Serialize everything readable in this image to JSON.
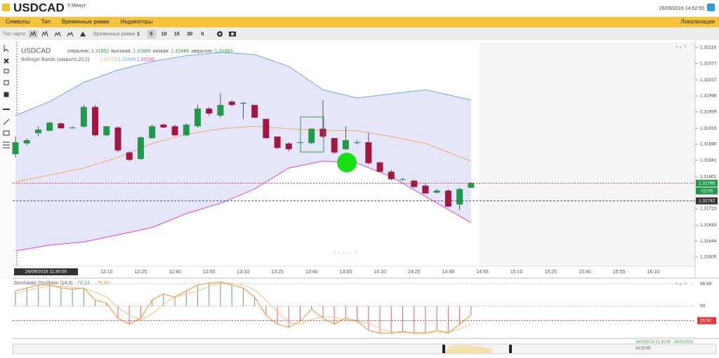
{
  "header": {
    "symbol": "USDCAD",
    "timeframe": "5 Минут",
    "datetime": "26/09/2016 14:52:55"
  },
  "menu": {
    "items": [
      "Символы",
      "Тип",
      "Временные рамки",
      "Индикаторы"
    ],
    "right": "Локализация"
  },
  "toolbar": {
    "chart_type_label": "Тип чарта:",
    "timeframes_label": "Временные рамки",
    "timeframes": [
      "1",
      "5",
      "10",
      "15",
      "30",
      "h"
    ],
    "active": "5"
  },
  "price_chart": {
    "type": "candlestick",
    "symbol": "USDCAD",
    "legend": [
      {
        "label": "открытие:",
        "value": "1.31852"
      },
      {
        "label": "высокая:",
        "value": "1.31886"
      },
      {
        "label": "низкая:",
        "value": "1.31849"
      },
      {
        "label": "закрытие:",
        "value": "1.31883"
      }
    ],
    "bollinger": {
      "name": "Bollinger Bands (закрыто,20,2)",
      "values": [
        "1.31770",
        "1.31945",
        "1.31595"
      ]
    },
    "start_label": "26/09/2016 11:30:00",
    "xticks": [
      "12:10",
      "12:25",
      "12:40",
      "12:55",
      "13:10",
      "13:25",
      "13:40",
      "13:55",
      "14:10",
      "14:25",
      "14:40",
      "14:55",
      "15:10",
      "15:25",
      "15:40",
      "15:55",
      "16:10"
    ],
    "ylim": [
      1.31574,
      1.32126
    ],
    "yticks": [
      1.32116,
      1.32077,
      1.32037,
      1.31998,
      1.31959,
      1.31919,
      {
        "value": 1.3188,
        "label": "1.31880"
      },
      1.31841,
      1.31801,
      1.31723,
      1.31683,
      1.31644,
      1.31605
    ],
    "up_color": "#1f9a48",
    "down_color": "#a3163f",
    "candles": [
      {
        "open": 1.31856,
        "high": 1.31899,
        "low": 1.31848,
        "close": 1.31885
      },
      {
        "open": 1.31882,
        "high": 1.31894,
        "low": 1.31877,
        "close": 1.3189
      },
      {
        "open": 1.31907,
        "high": 1.31924,
        "low": 1.31899,
        "close": 1.31916
      },
      {
        "open": 1.31913,
        "high": 1.31935,
        "low": 1.31911,
        "close": 1.31933
      },
      {
        "open": 1.31931,
        "high": 1.31933,
        "low": 1.31918,
        "close": 1.31919
      },
      {
        "open": 1.31921,
        "high": 1.31924,
        "low": 1.31919,
        "close": 1.31921
      },
      {
        "open": 1.31923,
        "high": 1.31976,
        "low": 1.31921,
        "close": 1.31971
      },
      {
        "open": 1.31971,
        "high": 1.31976,
        "low": 1.31899,
        "close": 1.31902
      },
      {
        "open": 1.31902,
        "high": 1.31924,
        "low": 1.31899,
        "close": 1.31924
      },
      {
        "open": 1.31921,
        "high": 1.31924,
        "low": 1.3186,
        "close": 1.31865
      },
      {
        "open": 1.3186,
        "high": 1.31863,
        "low": 1.31839,
        "close": 1.31842
      },
      {
        "open": 1.31844,
        "high": 1.31899,
        "low": 1.31842,
        "close": 1.31897
      },
      {
        "open": 1.31895,
        "high": 1.31928,
        "low": 1.31894,
        "close": 1.31924
      },
      {
        "open": 1.31928,
        "high": 1.31931,
        "low": 1.31919,
        "close": 1.31921
      },
      {
        "open": 1.31924,
        "high": 1.31928,
        "low": 1.31899,
        "close": 1.31902
      },
      {
        "open": 1.31902,
        "high": 1.31931,
        "low": 1.31899,
        "close": 1.31928
      },
      {
        "open": 1.31924,
        "high": 1.31976,
        "low": 1.31921,
        "close": 1.31967
      },
      {
        "open": 1.31967,
        "high": 1.31971,
        "low": 1.3195,
        "close": 1.31955
      },
      {
        "open": 1.3195,
        "high": 1.32005,
        "low": 1.31945,
        "close": 1.31976
      },
      {
        "open": 1.31984,
        "high": 1.31988,
        "low": 1.31972,
        "close": 1.31976
      },
      {
        "open": 1.31981,
        "high": 1.31984,
        "low": 1.31942,
        "close": 1.31981
      },
      {
        "open": 1.31976,
        "high": 1.31976,
        "low": 1.31945,
        "close": 1.31945
      },
      {
        "open": 1.31942,
        "high": 1.31942,
        "low": 1.31894,
        "close": 1.31895
      },
      {
        "open": 1.31899,
        "high": 1.31899,
        "low": 1.31868,
        "close": 1.31871
      },
      {
        "open": 1.31882,
        "high": 1.31885,
        "low": 1.31863,
        "close": 1.31868
      },
      {
        "open": 1.31885,
        "high": 1.31888,
        "low": 1.31883,
        "close": 1.31885
      },
      {
        "open": 1.31883,
        "high": 1.31919,
        "low": 1.3188,
        "close": 1.31918
      },
      {
        "open": 1.31918,
        "high": 1.31988,
        "low": 1.31895,
        "close": 1.31899
      },
      {
        "open": 1.31895,
        "high": 1.31895,
        "low": 1.31856,
        "close": 1.3186
      },
      {
        "open": 1.31868,
        "high": 1.31924,
        "low": 1.31865,
        "close": 1.3189
      },
      {
        "open": 1.31885,
        "high": 1.3189,
        "low": 1.3188,
        "close": 1.31885
      },
      {
        "open": 1.31885,
        "high": 1.31907,
        "low": 1.3183,
        "close": 1.31834
      },
      {
        "open": 1.31836,
        "high": 1.31836,
        "low": 1.31813,
        "close": 1.31813
      },
      {
        "open": 1.31813,
        "high": 1.31818,
        "low": 1.31791,
        "close": 1.31795
      },
      {
        "open": 1.31795,
        "high": 1.31798,
        "low": 1.31791,
        "close": 1.31795
      },
      {
        "open": 1.31791,
        "high": 1.31795,
        "low": 1.31774,
        "close": 1.31776
      },
      {
        "open": 1.31779,
        "high": 1.31786,
        "low": 1.3176,
        "close": 1.3176
      },
      {
        "open": 1.31762,
        "high": 1.31771,
        "low": 1.3176,
        "close": 1.31767
      },
      {
        "open": 1.31767,
        "high": 1.31771,
        "low": 1.31728,
        "close": 1.31728
      },
      {
        "open": 1.31733,
        "high": 1.31774,
        "low": 1.31719,
        "close": 1.31771
      },
      {
        "open": 1.31774,
        "high": 1.31788,
        "low": 1.31774,
        "close": 1.31786
      }
    ],
    "bands": {
      "x": [
        0,
        3,
        6,
        9,
        12,
        15,
        18,
        21,
        24,
        27,
        30,
        33,
        36,
        40
      ],
      "upper": {
        "color": "#6fa8dc",
        "values": [
          1.3195,
          1.31984,
          1.32031,
          1.32061,
          1.32082,
          1.32096,
          1.32104,
          1.32099,
          1.3207,
          1.32013,
          1.31993,
          1.32003,
          1.32013,
          1.31988
        ]
      },
      "middle": {
        "color": "#f4a460",
        "values": [
          1.31788,
          1.31805,
          1.31822,
          1.31848,
          1.31882,
          1.31904,
          1.31918,
          1.31924,
          1.31918,
          1.31914,
          1.31913,
          1.31899,
          1.31882,
          1.31839
        ]
      },
      "lower": {
        "color": "#e040e0",
        "values": [
          1.3162,
          1.31634,
          1.31642,
          1.31659,
          1.31677,
          1.31711,
          1.31736,
          1.31771,
          1.31822,
          1.31839,
          1.31834,
          1.31801,
          1.31753,
          1.31689
        ]
      },
      "fill": "#e6e6fb"
    },
    "last_price": 1.31785,
    "countdown": "02:05",
    "crosshair_price": 1.31742
  },
  "stochastic": {
    "title": "Stochastic Oscillator (14,3)",
    "values": [
      "76.13",
      "79.40"
    ],
    "ylim": [
      0,
      94
    ],
    "yticks": [
      86.99,
      50
    ],
    "last": 25.91,
    "k": {
      "color": "#f29a3a",
      "values": [
        75,
        80,
        85,
        85,
        80,
        78,
        80,
        60,
        55,
        30,
        20,
        30,
        60,
        70,
        65,
        75,
        85,
        88,
        90,
        85,
        80,
        65,
        35,
        20,
        15,
        25,
        45,
        30,
        20,
        30,
        25,
        10,
        5,
        5,
        8,
        5,
        5,
        10,
        5,
        20,
        35
      ]
    },
    "d": {
      "color": "#f7c58e",
      "values": [
        70,
        76,
        80,
        83,
        83,
        81,
        79,
        73,
        65,
        48,
        35,
        27,
        37,
        53,
        65,
        70,
        75,
        83,
        88,
        88,
        85,
        77,
        60,
        40,
        23,
        20,
        28,
        33,
        32,
        27,
        25,
        22,
        13,
        7,
        6,
        6,
        6,
        7,
        7,
        12,
        20
      ]
    },
    "up_color": "#4fa872",
    "down_color": "#e0606a"
  },
  "navigator": {
    "range": "26/09/2016 11:30:00 - 26/09/2016",
    "end": "16:20:00"
  }
}
